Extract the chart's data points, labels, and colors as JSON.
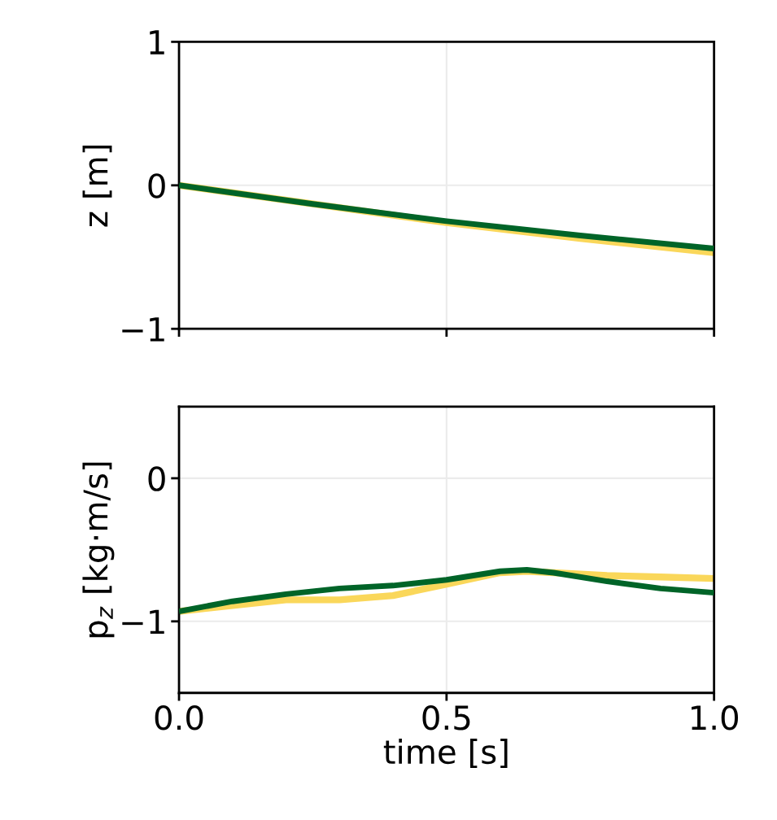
{
  "chart_data": [
    {
      "type": "line",
      "ylabel": "z [m]",
      "xlim": [
        0,
        1
      ],
      "xticks": [
        0,
        0.5,
        1
      ],
      "ylim": [
        -1,
        1
      ],
      "yticks": [
        -1,
        0,
        1
      ],
      "tick_labels": "y",
      "grid": true,
      "x": [
        0,
        0.25,
        0.5,
        0.75,
        1
      ],
      "series": [
        {
          "color": "#fad75a",
          "values": [
            0,
            -0.13,
            -0.26,
            -0.37,
            -0.47
          ]
        },
        {
          "color": "#006428",
          "values": [
            0,
            -0.13,
            -0.25,
            -0.35,
            -0.44
          ]
        }
      ]
    },
    {
      "type": "line",
      "xlabel": "time [s]",
      "ylabel": "p$_{z}$ [kg·m/s]",
      "xlim": [
        0,
        1
      ],
      "xticks": [
        {
          "value": 0,
          "label": "0.0"
        },
        0.5,
        {
          "value": 1,
          "label": "1.0"
        }
      ],
      "ylim": [
        -1.5,
        0.5
      ],
      "yticks": [
        0,
        -1
      ],
      "grid": true,
      "x": [
        0,
        0.1,
        0.2,
        0.3,
        0.4,
        0.5,
        0.6,
        0.65,
        0.7,
        0.8,
        0.9,
        1
      ],
      "series": [
        {
          "color": "#fad75a",
          "values": [
            -0.93,
            -0.89,
            -0.85,
            -0.85,
            -0.82,
            -0.74,
            -0.66,
            -0.65,
            -0.66,
            -0.68,
            -0.69,
            -0.7
          ]
        },
        {
          "color": "#006428",
          "values": [
            -0.93,
            -0.86,
            -0.81,
            -0.77,
            -0.75,
            -0.71,
            -0.65,
            -0.64,
            -0.66,
            -0.72,
            -0.77,
            -0.8
          ]
        }
      ]
    }
  ]
}
